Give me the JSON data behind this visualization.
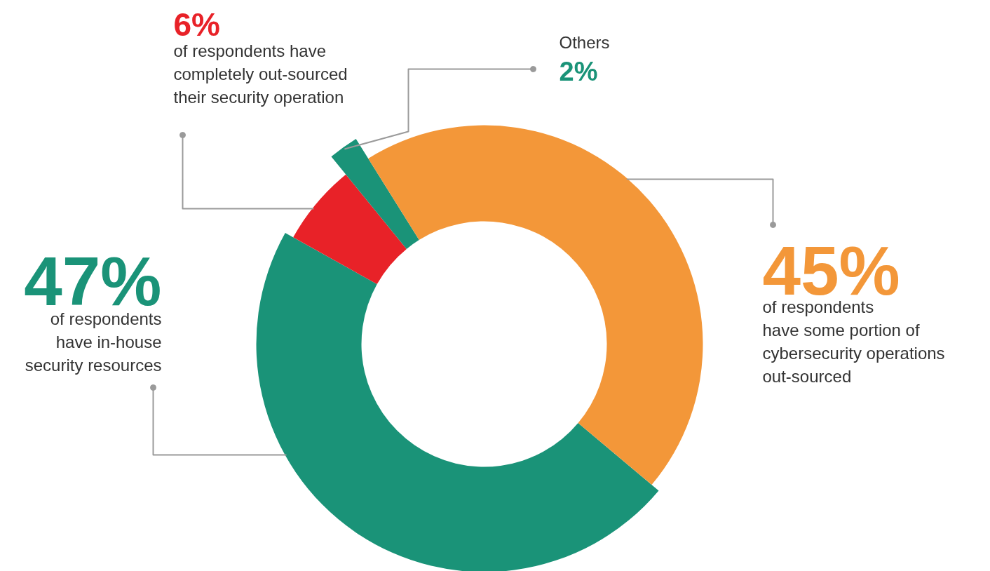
{
  "chart_data": {
    "type": "donut",
    "categories": [
      "of respondents\nhave in-house\nsecurity resources",
      "of respondents have\ncompletely out-sourced\ntheir security operation",
      "Others",
      "of respondents\nhave some portion of\ncybersecurity operations\nout-sourced"
    ],
    "values": [
      47,
      6,
      2,
      45
    ],
    "value_labels": [
      "47%",
      "6%",
      "2%",
      "45%"
    ],
    "colors": [
      "#1a9378",
      "#e82228",
      "#1a9378",
      "#f39739"
    ]
  }
}
